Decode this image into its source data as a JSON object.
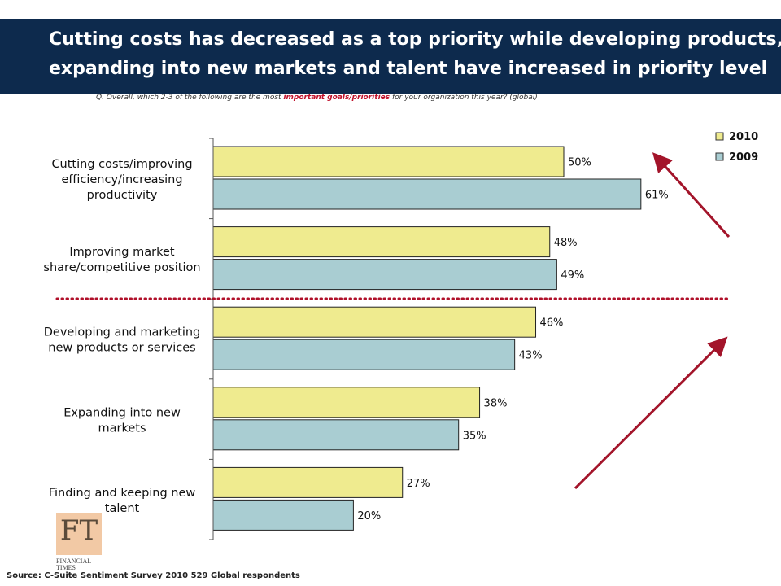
{
  "header": {
    "title_line1": "Cutting costs has decreased as a top priority while developing products,",
    "title_line2": "expanding into new  markets and talent have increased in priority level",
    "background_color": "#0d2a4d"
  },
  "question": {
    "prefix": "Q. Overall, which 2-3 of the following are the most ",
    "highlight": "important goals/priorities",
    "suffix": " for your organization this year? (global)"
  },
  "source": "Source: C-Suite Sentiment Survey 2010 529 Global respondents",
  "logo": {
    "letters": "FT",
    "name_line1": "FINANCIAL",
    "name_line2": "TIMES"
  },
  "chart_data": {
    "type": "bar",
    "orientation": "horizontal",
    "categories": [
      [
        "Cutting costs/improving",
        "efficiency/increasing",
        "productivity"
      ],
      [
        "Improving market",
        "share/competitive position"
      ],
      [
        "Developing and marketing",
        "new products or services"
      ],
      [
        "Expanding into new",
        "markets"
      ],
      [
        "Finding and keeping new",
        "talent"
      ]
    ],
    "series": [
      {
        "name": "2010",
        "values": [
          50,
          48,
          46,
          38,
          27
        ],
        "labels": [
          "50%",
          "48%",
          "46%",
          "38%",
          "27%"
        ],
        "color": "#efeb8f"
      },
      {
        "name": "2009",
        "values": [
          61,
          49,
          43,
          35,
          20
        ],
        "labels": [
          "61%",
          "49%",
          "43%",
          "35%",
          "20%"
        ],
        "color": "#a9cdd2"
      }
    ],
    "xlim": [
      0,
      70
    ],
    "legend_position": "top-right",
    "annotations": {
      "divider": "dotted red line between second and third category",
      "arrow_color": "#a3142a"
    }
  }
}
